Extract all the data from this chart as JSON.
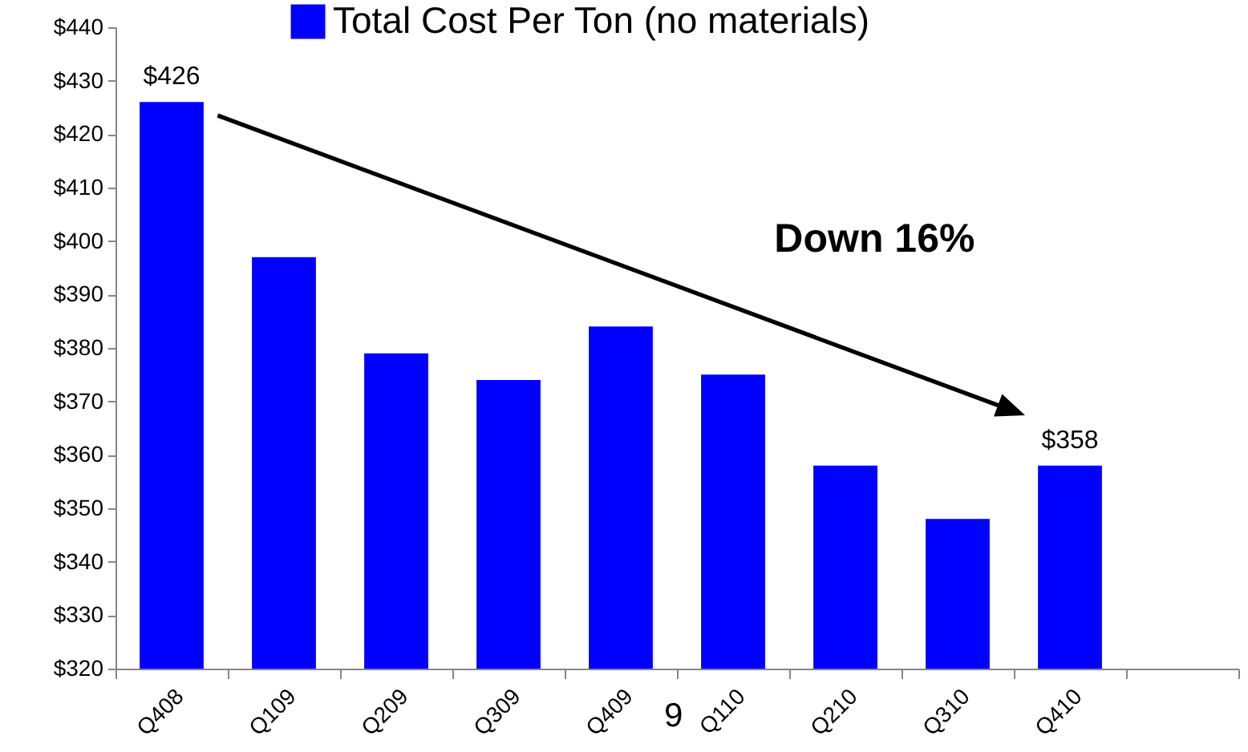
{
  "chart_data": {
    "type": "bar",
    "categories": [
      "Q408",
      "Q109",
      "Q209",
      "Q309",
      "Q409",
      "Q110",
      "Q210",
      "Q310",
      "Q410",
      null
    ],
    "series": [
      {
        "name": "Total Cost Per Ton (no materials)",
        "color": "#0000ff",
        "values": [
          426,
          397,
          379,
          374,
          384,
          375,
          358,
          348,
          358,
          null
        ],
        "value_labels": [
          "$426",
          null,
          null,
          null,
          null,
          null,
          null,
          null,
          "$358",
          null
        ]
      }
    ],
    "ylim": [
      320,
      440
    ],
    "yticks": [
      {
        "value": 320,
        "label": "$320"
      },
      {
        "value": 330,
        "label": "$330"
      },
      {
        "value": 340,
        "label": "$340"
      },
      {
        "value": 350,
        "label": "$350"
      },
      {
        "value": 360,
        "label": "$360"
      },
      {
        "value": 370,
        "label": "$370"
      },
      {
        "value": 380,
        "label": "$380"
      },
      {
        "value": 390,
        "label": "$390"
      },
      {
        "value": 400,
        "label": "$400"
      },
      {
        "value": 410,
        "label": "$410"
      },
      {
        "value": 420,
        "label": "$420"
      },
      {
        "value": 430,
        "label": "$430"
      },
      {
        "value": 440,
        "label": "$440"
      }
    ],
    "grid": false,
    "legend": "top",
    "annotations": [
      "Down 16%",
      "9"
    ]
  }
}
